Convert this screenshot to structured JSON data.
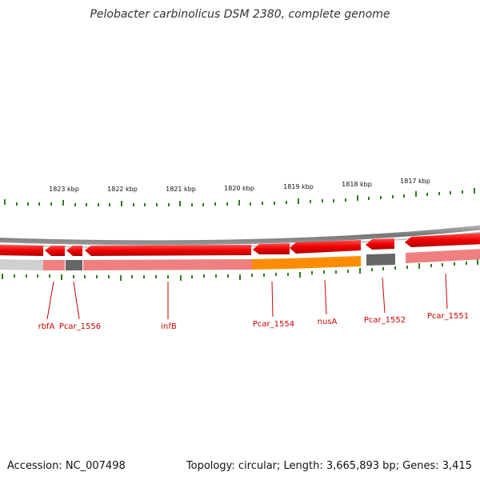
{
  "title": "Pelobacter carbinolicus DSM 2380, complete genome",
  "footer": {
    "accession": "Accession: NC_007498",
    "summary": "Topology: circular; Length: 3,665,893 bp; Genes: 3,415"
  },
  "scale": {
    "unit": "kbp",
    "ticks": [
      {
        "label": "1823 kbp",
        "pos_kbp": 1823
      },
      {
        "label": "1822 kbp",
        "pos_kbp": 1822
      },
      {
        "label": "1821 kbp",
        "pos_kbp": 1821
      },
      {
        "label": "1820 kbp",
        "pos_kbp": 1820
      },
      {
        "label": "1819 kbp",
        "pos_kbp": 1819
      },
      {
        "label": "1818 kbp",
        "pos_kbp": 1818
      },
      {
        "label": "1817 kbp",
        "pos_kbp": 1817
      }
    ]
  },
  "genes": [
    {
      "label": "rbfA",
      "strand": "-",
      "feature_color": "#d0d0d0"
    },
    {
      "label": "Pcar_1556",
      "strand": "-",
      "feature_color": "#666666"
    },
    {
      "label": "infB",
      "strand": "-",
      "feature_color": "#f08080"
    },
    {
      "label": "Pcar_1554",
      "strand": "-",
      "feature_color": "#ff8c00"
    },
    {
      "label": "nusA",
      "strand": "-",
      "feature_color": "#ff8c00"
    },
    {
      "label": "Pcar_1552",
      "strand": "-",
      "feature_color": "#666666"
    },
    {
      "label": "Pcar_1551",
      "strand": "-",
      "feature_color": "#f08080"
    }
  ],
  "colors": {
    "gene_arrow": "#ee0000",
    "backbone": "#888888",
    "tick": "#2e7d1e",
    "label": "#cc0000",
    "label_line": "#cc0000"
  }
}
